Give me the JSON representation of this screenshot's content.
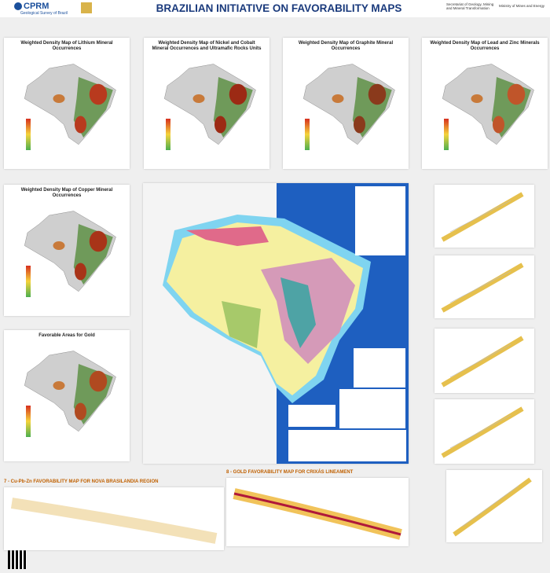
{
  "header": {
    "logo": "CPRM",
    "agency": "Geological Survey of Brazil",
    "title": "BRAZILIAN INITIATIVE ON FAVORABILITY MAPS",
    "secretariat": "Secretariat of Geology, Mining and Mineral Transformation",
    "ministry": "Ministry of Mines and Energy"
  },
  "panels": [
    {
      "title": "Weighted Density Map of Lithium Mineral Occurrences"
    },
    {
      "title": "Weighted Density Map of Nickel and Cobalt Mineral Occurrences and Ultramafic Rocks Units"
    },
    {
      "title": "Weighted Density Map of Graphite Mineral Occurrences"
    },
    {
      "title": "Weighted Density Map of Lead and Zinc Minerals Occurrences"
    },
    {
      "title": "Weighted Density Map of Copper Mineral Occurrences"
    },
    {
      "title": "Favorable Areas for Gold"
    }
  ],
  "bottom_panels": [
    {
      "title": "7 - Cu-Pb-Zn FAVORABILITY MAP FOR NOVA BRASILANDIA REGION"
    },
    {
      "title": "8 - GOLD FAVORABILITY MAP FOR CRIXÁS LINEAMENT"
    }
  ]
}
